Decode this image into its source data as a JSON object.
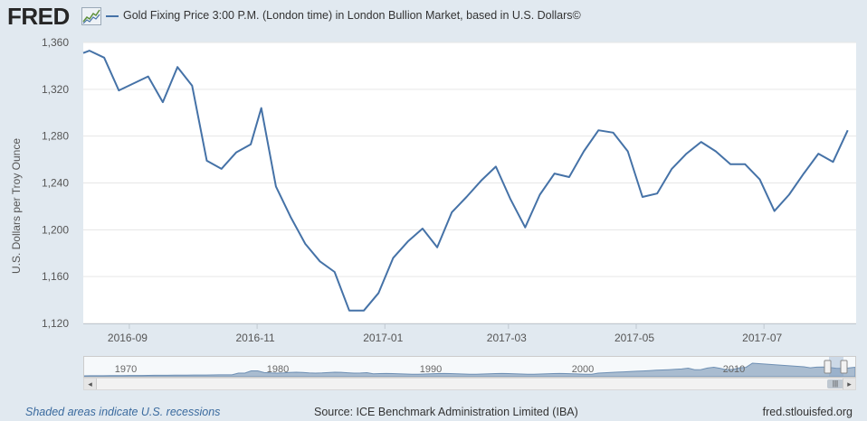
{
  "header": {
    "logo_text": "FRED",
    "series_title": "Gold Fixing Price 3:00 P.M. (London time) in London Bullion Market, based in U.S. Dollars©"
  },
  "chart_data": {
    "type": "line",
    "title": "Gold Fixing Price 3:00 P.M. (London time) in London Bullion Market, based in U.S. Dollars©",
    "xlabel": "",
    "ylabel": "U.S. Dollars per Troy Ounce",
    "ylim": [
      1120,
      1360
    ],
    "yticks": [
      1120,
      1160,
      1200,
      1240,
      1280,
      1320,
      1360
    ],
    "ytick_labels": [
      "1,120",
      "1,160",
      "1,200",
      "1,240",
      "1,280",
      "1,320",
      "1,360"
    ],
    "xlim": [
      "2016-08-10",
      "2017-08-14"
    ],
    "xticks": [
      "2016-09-01",
      "2016-11-01",
      "2017-01-01",
      "2017-03-01",
      "2017-05-01",
      "2017-07-01"
    ],
    "xtick_labels": [
      "2016-09",
      "2016-11",
      "2017-01",
      "2017-03",
      "2017-05",
      "2017-07"
    ],
    "grid": true,
    "color": "#4572a7",
    "series": [
      {
        "name": "Gold Fixing Price 3:00 P.M. (London time) in London Bullion Market, based in U.S. Dollars©",
        "x": [
          "2016-08-10",
          "2016-08-13",
          "2016-08-20",
          "2016-08-27",
          "2016-09-10",
          "2016-09-17",
          "2016-09-24",
          "2016-10-01",
          "2016-10-08",
          "2016-10-15",
          "2016-10-22",
          "2016-10-29",
          "2016-11-03",
          "2016-11-10",
          "2016-11-17",
          "2016-11-24",
          "2016-12-01",
          "2016-12-08",
          "2016-12-15",
          "2016-12-22",
          "2016-12-29",
          "2017-01-05",
          "2017-01-12",
          "2017-01-19",
          "2017-01-26",
          "2017-02-02",
          "2017-02-09",
          "2017-02-16",
          "2017-02-23",
          "2017-03-02",
          "2017-03-09",
          "2017-03-16",
          "2017-03-23",
          "2017-03-30",
          "2017-04-06",
          "2017-04-13",
          "2017-04-20",
          "2017-04-27",
          "2017-05-04",
          "2017-05-11",
          "2017-05-18",
          "2017-05-25",
          "2017-06-01",
          "2017-06-08",
          "2017-06-15",
          "2017-06-22",
          "2017-06-29",
          "2017-07-06",
          "2017-07-13",
          "2017-07-20",
          "2017-07-27",
          "2017-08-03",
          "2017-08-10"
        ],
        "values": [
          1351,
          1353,
          1347,
          1319,
          1331,
          1309,
          1339,
          1323,
          1259,
          1252,
          1266,
          1273,
          1304,
          1237,
          1211,
          1188,
          1173,
          1164,
          1131,
          1131,
          1146,
          1176,
          1190,
          1201,
          1185,
          1215,
          1228,
          1242,
          1254,
          1226,
          1202,
          1230,
          1248,
          1245,
          1267,
          1285,
          1283,
          1267,
          1228,
          1231,
          1252,
          1265,
          1275,
          1267,
          1256,
          1256,
          1243,
          1216,
          1230,
          1248,
          1265,
          1258,
          1285
        ]
      }
    ],
    "navigator_labels": [
      "1970",
      "1980",
      "1990",
      "2000",
      "2010"
    ]
  },
  "footer": {
    "recessions_note": "Shaded areas indicate U.S. recessions",
    "source": "Source: ICE Benchmark Administration Limited (IBA)",
    "site": "fred.stlouisfed.org"
  }
}
